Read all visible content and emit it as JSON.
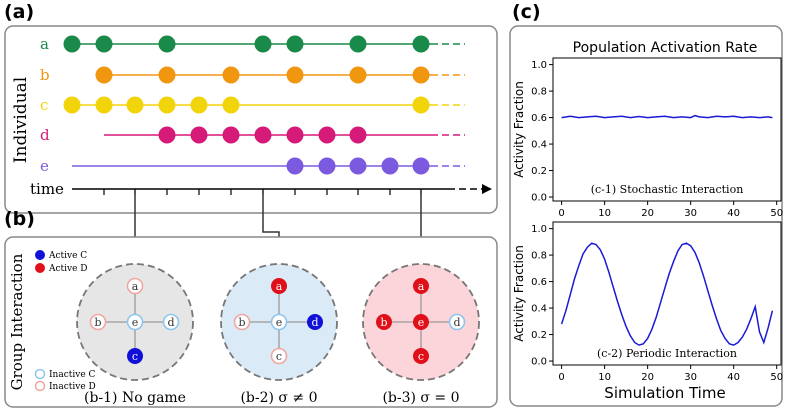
{
  "panel_a": {
    "label": "(a)",
    "y_label": "Individual",
    "time_label": "time",
    "rows": [
      {
        "name": "a",
        "color": "#1a8a4a",
        "events": [
          0,
          1,
          3,
          6,
          7,
          9,
          11
        ]
      },
      {
        "name": "b",
        "color": "#f0960f",
        "events": [
          1,
          3,
          5,
          7,
          9,
          11
        ]
      },
      {
        "name": "c",
        "color": "#f2d40a",
        "events": [
          0,
          1,
          2,
          3,
          4,
          5,
          11
        ]
      },
      {
        "name": "d",
        "color": "#d61a7a",
        "events": [
          3,
          4,
          5,
          6,
          7,
          8,
          9
        ]
      },
      {
        "name": "e",
        "color": "#7b5ae0",
        "events": [
          7,
          8,
          9,
          10,
          11
        ]
      }
    ]
  },
  "panel_b": {
    "label": "(b)",
    "y_label": "Group Interaction",
    "legend": {
      "active_c": "Active C",
      "active_d": "Active D",
      "inactive_c": "Inactive C",
      "inactive_d": "Inactive D",
      "active_c_color": "#1010d8",
      "active_d_color": "#e0101a",
      "inactive_c_color": "#8ec5ee",
      "inactive_d_color": "#f1a6a2"
    },
    "groups": [
      {
        "caption": "(b-1) No game",
        "bg": "#e6e6e6",
        "nodes": [
          {
            "id": "a",
            "state": "inactive_d"
          },
          {
            "id": "b",
            "state": "inactive_d"
          },
          {
            "id": "e",
            "state": "inactive_c"
          },
          {
            "id": "d",
            "state": "inactive_c"
          },
          {
            "id": "c",
            "state": "active_c"
          }
        ]
      },
      {
        "caption": "(b-2) σ ≠ 0",
        "bg": "#dbeaf7",
        "nodes": [
          {
            "id": "a",
            "state": "active_d"
          },
          {
            "id": "b",
            "state": "inactive_d"
          },
          {
            "id": "e",
            "state": "inactive_c"
          },
          {
            "id": "d",
            "state": "active_c"
          },
          {
            "id": "c",
            "state": "inactive_d"
          }
        ]
      },
      {
        "caption": "(b-3) σ = 0",
        "bg": "#fcd5da",
        "nodes": [
          {
            "id": "a",
            "state": "active_d"
          },
          {
            "id": "b",
            "state": "active_d"
          },
          {
            "id": "e",
            "state": "active_d"
          },
          {
            "id": "d",
            "state": "inactive_c"
          },
          {
            "id": "c",
            "state": "active_d"
          }
        ]
      }
    ]
  },
  "panel_c": {
    "label": "(c)",
    "title": "Population Activation Rate",
    "x_label": "Simulation Time",
    "line_color": "#1a1ad6"
  },
  "chart_data": [
    {
      "type": "line",
      "title": "Population Activation Rate",
      "annotation": "(c-1) Stochastic Interaction",
      "xlabel": "",
      "ylabel": "Activity Fraction",
      "xlim": [
        -2,
        51
      ],
      "ylim": [
        -0.03,
        1.05
      ],
      "xticks": [
        0,
        10,
        20,
        30,
        40,
        50
      ],
      "yticks": [
        0.0,
        0.2,
        0.4,
        0.6,
        0.8,
        1.0
      ],
      "series": [
        {
          "name": "Stochastic",
          "x": [
            0,
            2,
            4,
            6,
            8,
            10,
            12,
            14,
            16,
            18,
            20,
            22,
            24,
            26,
            28,
            30,
            31,
            32,
            34,
            36,
            38,
            40,
            42,
            44,
            46,
            48,
            49
          ],
          "y": [
            0.6,
            0.61,
            0.6,
            0.605,
            0.61,
            0.6,
            0.605,
            0.61,
            0.6,
            0.608,
            0.6,
            0.605,
            0.61,
            0.6,
            0.605,
            0.6,
            0.615,
            0.605,
            0.6,
            0.61,
            0.605,
            0.61,
            0.6,
            0.605,
            0.6,
            0.605,
            0.6
          ]
        }
      ]
    },
    {
      "type": "line",
      "title": "",
      "annotation": "(c-2) Periodic Interaction",
      "xlabel": "Simulation Time",
      "ylabel": "Activity Fraction",
      "xlim": [
        -2,
        51
      ],
      "ylim": [
        -0.03,
        1.05
      ],
      "xticks": [
        0,
        10,
        20,
        30,
        40,
        50
      ],
      "yticks": [
        0.0,
        0.2,
        0.4,
        0.6,
        0.8,
        1.0
      ],
      "series": [
        {
          "name": "Periodic",
          "x": [
            0,
            1,
            2,
            3,
            4,
            5,
            6,
            7,
            8,
            9,
            10,
            11,
            12,
            13,
            14,
            15,
            16,
            17,
            18,
            19,
            20,
            21,
            22,
            23,
            24,
            25,
            26,
            27,
            28,
            29,
            30,
            31,
            32,
            33,
            34,
            35,
            36,
            37,
            38,
            39,
            40,
            41,
            42,
            43,
            44,
            45,
            46,
            47,
            48,
            49
          ],
          "y": [
            0.28,
            0.38,
            0.5,
            0.62,
            0.72,
            0.81,
            0.86,
            0.89,
            0.88,
            0.84,
            0.77,
            0.67,
            0.56,
            0.45,
            0.35,
            0.26,
            0.19,
            0.14,
            0.12,
            0.13,
            0.17,
            0.24,
            0.33,
            0.44,
            0.55,
            0.66,
            0.75,
            0.83,
            0.88,
            0.89,
            0.87,
            0.82,
            0.74,
            0.64,
            0.53,
            0.42,
            0.32,
            0.23,
            0.17,
            0.13,
            0.12,
            0.14,
            0.18,
            0.24,
            0.32,
            0.41,
            0.22,
            0.14,
            0.25,
            0.38
          ]
        }
      ]
    }
  ]
}
